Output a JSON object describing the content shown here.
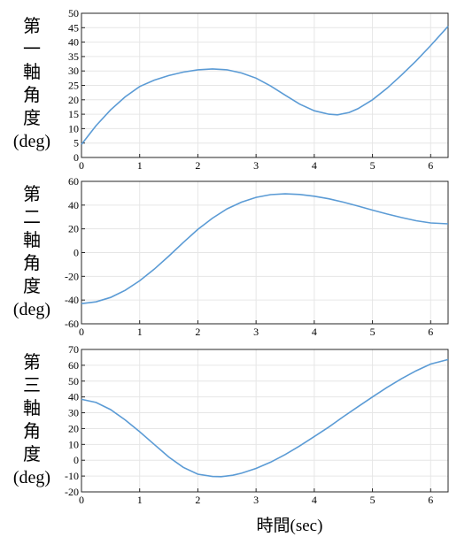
{
  "chart_data": [
    {
      "type": "line",
      "ylabel_chars": [
        "第",
        "一",
        "軸",
        "角",
        "度",
        "(deg)"
      ],
      "xlim": [
        0,
        6.3
      ],
      "ylim": [
        0,
        50
      ],
      "xticks": [
        "0",
        "1",
        "2",
        "3",
        "4",
        "5",
        "6"
      ],
      "yticks": [
        "0",
        "5",
        "10",
        "15",
        "20",
        "25",
        "30",
        "35",
        "40",
        "45",
        "50"
      ],
      "grid": true,
      "color": "#5b9bd5",
      "x": [
        0,
        0.25,
        0.5,
        0.75,
        1.0,
        1.25,
        1.5,
        1.75,
        2.0,
        2.25,
        2.5,
        2.75,
        3.0,
        3.25,
        3.5,
        3.75,
        4.0,
        4.25,
        4.4,
        4.6,
        4.75,
        5.0,
        5.25,
        5.5,
        5.75,
        6.0,
        6.3
      ],
      "y": [
        4.5,
        11.0,
        16.5,
        21.0,
        24.6,
        26.8,
        28.4,
        29.6,
        30.4,
        30.7,
        30.4,
        29.3,
        27.5,
        24.8,
        21.6,
        18.5,
        16.2,
        15.0,
        14.8,
        15.6,
        16.9,
        20.0,
        24.0,
        28.6,
        33.5,
        38.8,
        45.5
      ]
    },
    {
      "type": "line",
      "ylabel_chars": [
        "第",
        "二",
        "軸",
        "角",
        "度",
        "(deg)"
      ],
      "xlim": [
        0,
        6.3
      ],
      "ylim": [
        -60,
        60
      ],
      "xticks": [
        "0",
        "1",
        "2",
        "3",
        "4",
        "5",
        "6"
      ],
      "yticks": [
        "-60",
        "-40",
        "-20",
        "0",
        "20",
        "40",
        "60"
      ],
      "grid": true,
      "color": "#5b9bd5",
      "x": [
        0,
        0.25,
        0.5,
        0.75,
        1.0,
        1.25,
        1.5,
        1.75,
        2.0,
        2.25,
        2.5,
        2.75,
        3.0,
        3.25,
        3.5,
        3.75,
        4.0,
        4.25,
        4.5,
        4.75,
        5.0,
        5.25,
        5.5,
        5.75,
        6.0,
        6.3
      ],
      "y": [
        -43.0,
        -41.5,
        -37.8,
        -31.8,
        -23.8,
        -14.0,
        -3.0,
        8.5,
        19.5,
        29.0,
        36.8,
        42.5,
        46.5,
        48.8,
        49.5,
        49.0,
        47.5,
        45.3,
        42.5,
        39.2,
        35.8,
        32.5,
        29.5,
        26.8,
        25.0,
        24.2
      ]
    },
    {
      "type": "line",
      "ylabel_chars": [
        "第",
        "三",
        "軸",
        "角",
        "度",
        "(deg)"
      ],
      "xlim": [
        0,
        6.3
      ],
      "ylim": [
        -20,
        70
      ],
      "xticks": [
        "0",
        "1",
        "2",
        "3",
        "4",
        "5",
        "6"
      ],
      "yticks": [
        "-20",
        "-10",
        "0",
        "10",
        "20",
        "30",
        "40",
        "50",
        "60",
        "70"
      ],
      "grid": true,
      "color": "#5b9bd5",
      "x": [
        0,
        0.25,
        0.5,
        0.75,
        1.0,
        1.25,
        1.5,
        1.75,
        2.0,
        2.25,
        2.4,
        2.6,
        2.75,
        3.0,
        3.25,
        3.5,
        3.75,
        4.0,
        4.25,
        4.5,
        4.75,
        5.0,
        5.25,
        5.5,
        5.75,
        6.0,
        6.3
      ],
      "y": [
        38.5,
        36.5,
        32.0,
        25.5,
        18.0,
        10.0,
        2.0,
        -4.5,
        -8.8,
        -10.3,
        -10.4,
        -9.5,
        -8.2,
        -5.2,
        -1.2,
        3.6,
        9.0,
        15.0,
        21.0,
        27.5,
        33.8,
        40.0,
        46.0,
        51.5,
        56.5,
        60.8,
        63.6
      ]
    }
  ],
  "xlabel": "時間(sec)"
}
